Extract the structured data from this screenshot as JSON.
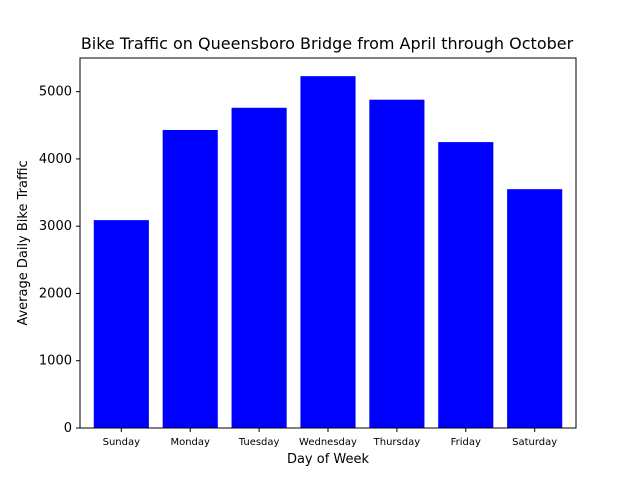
{
  "chart_data": {
    "type": "bar",
    "title": "Bike Traffic on Queensboro Bridge from April through October",
    "xlabel": "Day of Week",
    "ylabel": "Average Daily Bike Traffic",
    "categories": [
      "Sunday",
      "Monday",
      "Tuesday",
      "Wednesday",
      "Thursday",
      "Friday",
      "Saturday"
    ],
    "values": [
      3090,
      4430,
      4760,
      5230,
      4880,
      4250,
      3550
    ],
    "ylim": [
      0,
      5500
    ],
    "yticks": [
      0,
      1000,
      2000,
      3000,
      4000,
      5000
    ],
    "grid": false,
    "bar_color": "#0000ff"
  }
}
